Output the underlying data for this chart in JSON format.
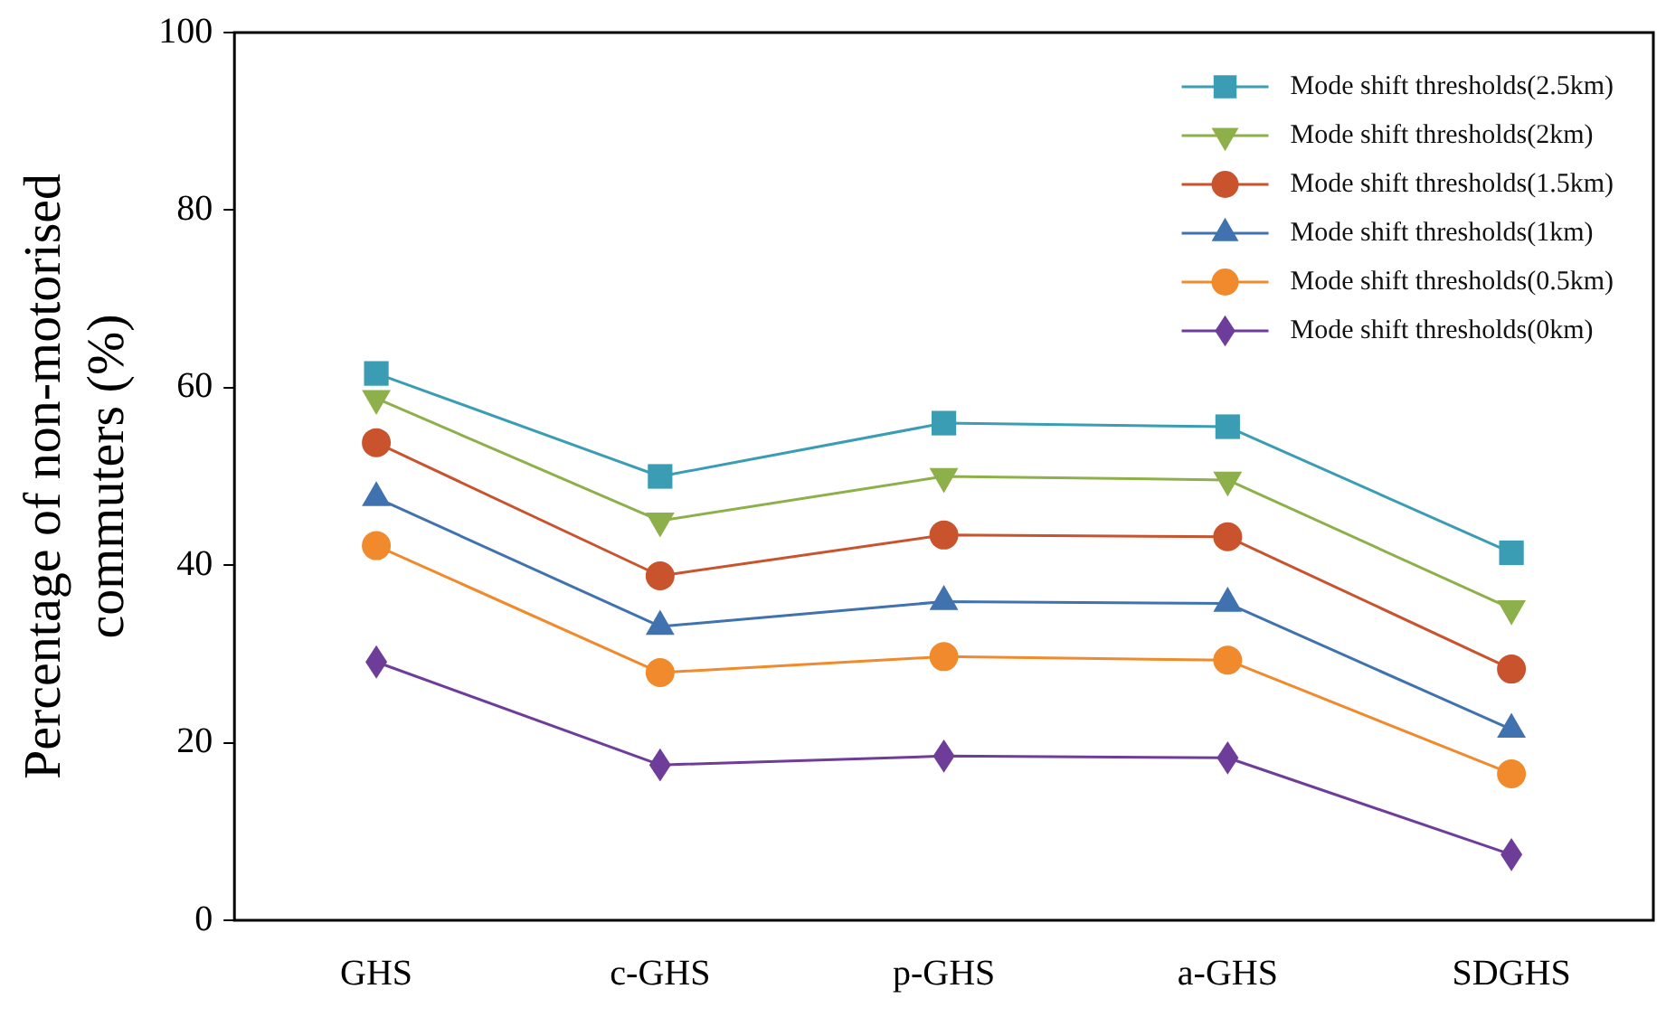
{
  "chart_data": {
    "type": "line",
    "ylabel": "Percentage of non-motorised commuters (%)",
    "categories": [
      "GHS",
      "c-GHS",
      "p-GHS",
      "a-GHS",
      "SDGHS"
    ],
    "ylim": [
      0,
      100
    ],
    "yticks": [
      0,
      20,
      40,
      60,
      80,
      100
    ],
    "grid": false,
    "legend": "top right",
    "line_style": "solid",
    "series": [
      {
        "name": "Mode shift thresholds(2.5km)",
        "color": "#3a9db4",
        "marker": "square",
        "values": [
          61.6,
          50.0,
          56.0,
          55.6,
          41.4
        ]
      },
      {
        "name": "Mode shift thresholds(2km)",
        "color": "#8db04a",
        "marker": "triangle-down",
        "values": [
          58.8,
          45.0,
          50.0,
          49.6,
          35.1
        ]
      },
      {
        "name": "Mode shift thresholds(1.5km)",
        "color": "#c8532d",
        "marker": "circle",
        "values": [
          53.8,
          38.8,
          43.4,
          43.2,
          28.3
        ]
      },
      {
        "name": "Mode shift thresholds(1km)",
        "color": "#3f72ae",
        "marker": "triangle",
        "values": [
          47.6,
          33.1,
          35.9,
          35.7,
          21.5
        ]
      },
      {
        "name": "Mode shift thresholds(0.5km)",
        "color": "#f08a2c",
        "marker": "circle",
        "values": [
          42.2,
          27.9,
          29.7,
          29.3,
          16.5
        ]
      },
      {
        "name": "Mode shift thresholds(0km)",
        "color": "#6e3d9a",
        "marker": "diamond",
        "values": [
          29.1,
          17.5,
          18.5,
          18.3,
          7.4
        ]
      }
    ]
  }
}
